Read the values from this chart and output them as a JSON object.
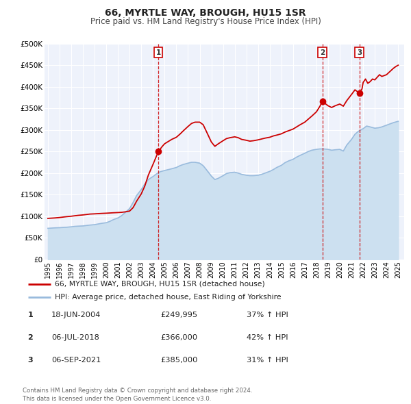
{
  "title": "66, MYRTLE WAY, BROUGH, HU15 1SR",
  "subtitle": "Price paid vs. HM Land Registry's House Price Index (HPI)",
  "red_line_label": "66, MYRTLE WAY, BROUGH, HU15 1SR (detached house)",
  "blue_line_label": "HPI: Average price, detached house, East Riding of Yorkshire",
  "footer": "Contains HM Land Registry data © Crown copyright and database right 2024.\nThis data is licensed under the Open Government Licence v3.0.",
  "transactions": [
    {
      "num": 1,
      "date": "18-JUN-2004",
      "price": "£249,995",
      "hpi": "37% ↑ HPI",
      "x_year": 2004.46,
      "price_val": 249995
    },
    {
      "num": 2,
      "date": "06-JUL-2018",
      "price": "£366,000",
      "hpi": "42% ↑ HPI",
      "x_year": 2018.51,
      "price_val": 366000
    },
    {
      "num": 3,
      "date": "06-SEP-2021",
      "price": "£385,000",
      "hpi": "31% ↑ HPI",
      "x_year": 2021.68,
      "price_val": 385000
    }
  ],
  "ylim": [
    0,
    500000
  ],
  "yticks": [
    0,
    50000,
    100000,
    150000,
    200000,
    250000,
    300000,
    350000,
    400000,
    450000,
    500000
  ],
  "xlim_start": 1994.7,
  "xlim_end": 2025.5,
  "xticks": [
    1995,
    1996,
    1997,
    1998,
    1999,
    2000,
    2001,
    2002,
    2003,
    2004,
    2005,
    2006,
    2007,
    2008,
    2009,
    2010,
    2011,
    2012,
    2013,
    2014,
    2015,
    2016,
    2017,
    2018,
    2019,
    2020,
    2021,
    2022,
    2023,
    2024,
    2025
  ],
  "plot_bg": "#eef2fb",
  "grid_color": "#ffffff",
  "red_color": "#cc0000",
  "blue_color": "#99bbdd",
  "blue_fill_color": "#cce0f0",
  "red_hpi_data": [
    [
      1995.0,
      95000
    ],
    [
      1995.3,
      95500
    ],
    [
      1995.6,
      96000
    ],
    [
      1996.0,
      97000
    ],
    [
      1996.3,
      98000
    ],
    [
      1996.6,
      99000
    ],
    [
      1997.0,
      100000
    ],
    [
      1997.3,
      101000
    ],
    [
      1997.6,
      102000
    ],
    [
      1998.0,
      103000
    ],
    [
      1998.3,
      104000
    ],
    [
      1998.6,
      105000
    ],
    [
      1999.0,
      105500
    ],
    [
      1999.3,
      106000
    ],
    [
      1999.6,
      106500
    ],
    [
      2000.0,
      107000
    ],
    [
      2000.3,
      107500
    ],
    [
      2000.6,
      108000
    ],
    [
      2001.0,
      108500
    ],
    [
      2001.3,
      109000
    ],
    [
      2001.6,
      110000
    ],
    [
      2002.0,
      112000
    ],
    [
      2002.3,
      120000
    ],
    [
      2002.6,
      135000
    ],
    [
      2003.0,
      152000
    ],
    [
      2003.3,
      170000
    ],
    [
      2003.6,
      195000
    ],
    [
      2004.0,
      220000
    ],
    [
      2004.46,
      249995
    ],
    [
      2004.8,
      262000
    ],
    [
      2005.0,
      268000
    ],
    [
      2005.3,
      273000
    ],
    [
      2005.6,
      278000
    ],
    [
      2006.0,
      283000
    ],
    [
      2006.3,
      290000
    ],
    [
      2006.6,
      298000
    ],
    [
      2007.0,
      308000
    ],
    [
      2007.3,
      315000
    ],
    [
      2007.6,
      318000
    ],
    [
      2008.0,
      318000
    ],
    [
      2008.3,
      312000
    ],
    [
      2008.6,
      295000
    ],
    [
      2009.0,
      272000
    ],
    [
      2009.3,
      262000
    ],
    [
      2009.6,
      268000
    ],
    [
      2010.0,
      275000
    ],
    [
      2010.3,
      280000
    ],
    [
      2010.6,
      282000
    ],
    [
      2011.0,
      284000
    ],
    [
      2011.3,
      282000
    ],
    [
      2011.6,
      278000
    ],
    [
      2012.0,
      276000
    ],
    [
      2012.3,
      274000
    ],
    [
      2012.6,
      275000
    ],
    [
      2013.0,
      277000
    ],
    [
      2013.3,
      279000
    ],
    [
      2013.6,
      281000
    ],
    [
      2014.0,
      283000
    ],
    [
      2014.3,
      286000
    ],
    [
      2014.6,
      288000
    ],
    [
      2015.0,
      291000
    ],
    [
      2015.3,
      295000
    ],
    [
      2015.6,
      298000
    ],
    [
      2016.0,
      302000
    ],
    [
      2016.3,
      307000
    ],
    [
      2016.6,
      312000
    ],
    [
      2017.0,
      318000
    ],
    [
      2017.3,
      325000
    ],
    [
      2017.6,
      332000
    ],
    [
      2018.0,
      342000
    ],
    [
      2018.3,
      355000
    ],
    [
      2018.51,
      366000
    ],
    [
      2018.7,
      362000
    ],
    [
      2019.0,
      356000
    ],
    [
      2019.3,
      352000
    ],
    [
      2019.6,
      356000
    ],
    [
      2020.0,
      360000
    ],
    [
      2020.3,
      355000
    ],
    [
      2020.6,
      368000
    ],
    [
      2021.0,
      382000
    ],
    [
      2021.3,
      393000
    ],
    [
      2021.68,
      385000
    ],
    [
      2021.9,
      395000
    ],
    [
      2022.0,
      410000
    ],
    [
      2022.2,
      418000
    ],
    [
      2022.4,
      408000
    ],
    [
      2022.6,
      412000
    ],
    [
      2022.8,
      418000
    ],
    [
      2023.0,
      416000
    ],
    [
      2023.2,
      422000
    ],
    [
      2023.4,
      428000
    ],
    [
      2023.6,
      424000
    ],
    [
      2023.8,
      426000
    ],
    [
      2024.0,
      428000
    ],
    [
      2024.2,
      433000
    ],
    [
      2024.4,
      438000
    ],
    [
      2024.6,
      443000
    ],
    [
      2024.8,
      447000
    ],
    [
      2025.0,
      450000
    ]
  ],
  "blue_hpi_data": [
    [
      1995.0,
      72000
    ],
    [
      1995.3,
      72500
    ],
    [
      1995.6,
      73000
    ],
    [
      1996.0,
      73500
    ],
    [
      1996.3,
      74000
    ],
    [
      1996.6,
      74500
    ],
    [
      1997.0,
      75500
    ],
    [
      1997.3,
      76500
    ],
    [
      1997.6,
      77000
    ],
    [
      1998.0,
      77500
    ],
    [
      1998.3,
      78500
    ],
    [
      1998.6,
      79500
    ],
    [
      1999.0,
      80500
    ],
    [
      1999.3,
      82000
    ],
    [
      1999.6,
      83500
    ],
    [
      2000.0,
      85000
    ],
    [
      2000.3,
      88000
    ],
    [
      2000.6,
      92000
    ],
    [
      2001.0,
      96000
    ],
    [
      2001.3,
      101000
    ],
    [
      2001.6,
      108000
    ],
    [
      2002.0,
      118000
    ],
    [
      2002.3,
      132000
    ],
    [
      2002.6,
      148000
    ],
    [
      2003.0,
      162000
    ],
    [
      2003.3,
      175000
    ],
    [
      2003.6,
      185000
    ],
    [
      2004.0,
      192000
    ],
    [
      2004.3,
      198000
    ],
    [
      2004.6,
      203000
    ],
    [
      2005.0,
      206000
    ],
    [
      2005.3,
      208000
    ],
    [
      2005.6,
      210000
    ],
    [
      2006.0,
      213000
    ],
    [
      2006.3,
      217000
    ],
    [
      2006.6,
      220000
    ],
    [
      2007.0,
      223000
    ],
    [
      2007.3,
      225000
    ],
    [
      2007.6,
      225000
    ],
    [
      2008.0,
      223000
    ],
    [
      2008.3,
      217000
    ],
    [
      2008.6,
      207000
    ],
    [
      2009.0,
      193000
    ],
    [
      2009.3,
      185000
    ],
    [
      2009.6,
      188000
    ],
    [
      2010.0,
      194000
    ],
    [
      2010.3,
      199000
    ],
    [
      2010.6,
      201000
    ],
    [
      2011.0,
      202000
    ],
    [
      2011.3,
      200000
    ],
    [
      2011.6,
      197000
    ],
    [
      2012.0,
      195000
    ],
    [
      2012.3,
      194000
    ],
    [
      2012.6,
      194000
    ],
    [
      2013.0,
      195000
    ],
    [
      2013.3,
      197000
    ],
    [
      2013.6,
      200000
    ],
    [
      2014.0,
      204000
    ],
    [
      2014.3,
      208000
    ],
    [
      2014.6,
      213000
    ],
    [
      2015.0,
      218000
    ],
    [
      2015.3,
      224000
    ],
    [
      2015.6,
      228000
    ],
    [
      2016.0,
      232000
    ],
    [
      2016.3,
      237000
    ],
    [
      2016.6,
      241000
    ],
    [
      2017.0,
      246000
    ],
    [
      2017.3,
      250000
    ],
    [
      2017.6,
      253000
    ],
    [
      2018.0,
      255000
    ],
    [
      2018.3,
      256000
    ],
    [
      2018.6,
      256000
    ],
    [
      2019.0,
      255000
    ],
    [
      2019.3,
      253000
    ],
    [
      2019.6,
      254000
    ],
    [
      2020.0,
      255000
    ],
    [
      2020.3,
      251000
    ],
    [
      2020.6,
      265000
    ],
    [
      2021.0,
      278000
    ],
    [
      2021.3,
      290000
    ],
    [
      2021.6,
      297000
    ],
    [
      2022.0,
      303000
    ],
    [
      2022.3,
      309000
    ],
    [
      2022.6,
      307000
    ],
    [
      2023.0,
      304000
    ],
    [
      2023.3,
      305000
    ],
    [
      2023.6,
      307000
    ],
    [
      2024.0,
      311000
    ],
    [
      2024.3,
      314000
    ],
    [
      2024.6,
      317000
    ],
    [
      2025.0,
      320000
    ]
  ]
}
